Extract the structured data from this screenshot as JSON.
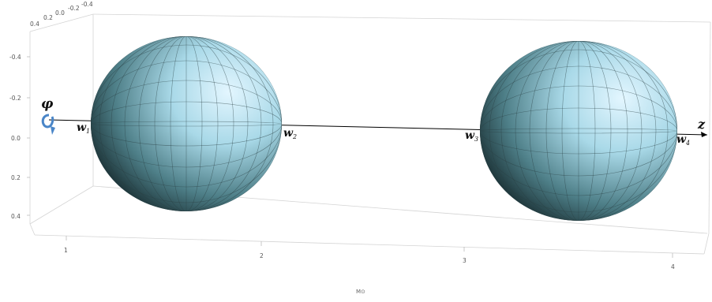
{
  "axes": {
    "left_ticks": [
      "-0.4",
      "-0.2",
      "0.0",
      "0.2",
      "0.4"
    ],
    "bottom_ticks": [
      "1",
      "2",
      "3",
      "4"
    ],
    "top_ticks": [
      "0.4",
      "0.2",
      "0.0",
      "-0.2",
      "-0.4"
    ],
    "x_label": "M⊙"
  },
  "labels": {
    "phi": "φ",
    "z": "z",
    "points": [
      {
        "base": "w",
        "sub": "1"
      },
      {
        "base": "w",
        "sub": "2"
      },
      {
        "base": "w",
        "sub": "3"
      },
      {
        "base": "w",
        "sub": "4"
      }
    ]
  },
  "colors": {
    "sphere_light": "#dff3ff",
    "sphere_mid": "#8fc6d6",
    "sphere_dark": "#0f1f22",
    "axis": "#000000",
    "box": "#d0d0d0",
    "arrow_blue": "#4a86c8"
  },
  "icons": [
    "rotation-arrow-icon"
  ]
}
